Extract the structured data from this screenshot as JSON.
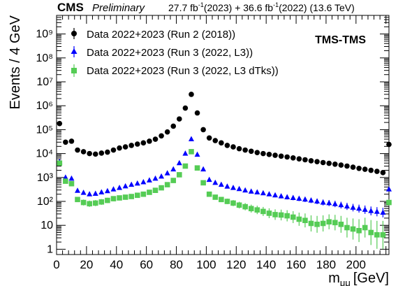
{
  "header": {
    "experiment": "CMS",
    "status": "Preliminary",
    "lumi_text": "27.7 fb",
    "lumi_text_2": "(2023) + 36.6 fb",
    "lumi_text_3": "(2022) (13.6 TeV)",
    "lumi_exp": "-1"
  },
  "chart_data": {
    "type": "scatter",
    "tag": "TMS-TMS",
    "xlabel": "m",
    "xlabel_sub": "μμ",
    "xlabel_unit": "[GeV]",
    "ylabel": "Events / 4 GeV",
    "xlim": [
      0,
      222
    ],
    "ylim": [
      0.6,
      6000000000
    ],
    "yscale": "log",
    "x_ticks": [
      0,
      20,
      40,
      60,
      80,
      100,
      120,
      140,
      160,
      180,
      200
    ],
    "y_tick_labels": [
      "1",
      "10",
      "10²",
      "10³",
      "10⁴",
      "10⁵",
      "10⁶",
      "10⁷",
      "10⁸",
      "10⁹"
    ],
    "legend_position": "top-left",
    "series": [
      {
        "name": "Data 2022+2023 (Run 2 (2018))",
        "color": "#000000",
        "marker": "circle",
        "x": [
          2,
          6,
          10,
          14,
          18,
          22,
          26,
          30,
          34,
          38,
          42,
          46,
          50,
          54,
          58,
          62,
          66,
          70,
          74,
          78,
          82,
          86,
          90,
          94,
          98,
          102,
          106,
          110,
          114,
          118,
          122,
          126,
          130,
          134,
          138,
          142,
          146,
          150,
          154,
          158,
          162,
          166,
          170,
          174,
          178,
          182,
          186,
          190,
          194,
          198,
          202,
          206,
          210,
          214,
          218,
          222
        ],
        "y": [
          180000,
          30000,
          33000,
          14000,
          12000,
          10000,
          9500,
          10500,
          11500,
          14000,
          17000,
          19000,
          22000,
          25000,
          28000,
          33000,
          40000,
          55000,
          80000,
          140000,
          280000,
          800000,
          3000000,
          500000,
          100000,
          45000,
          35000,
          28000,
          22000,
          19000,
          16000,
          14000,
          12500,
          11000,
          10000,
          9200,
          8500,
          7800,
          7200,
          6600,
          6000,
          5500,
          5000,
          4600,
          4200,
          3900,
          3600,
          3300,
          3000,
          2700,
          2400,
          2200,
          2000,
          1800,
          1600,
          24000
        ]
      },
      {
        "name": "Data 2022+2023 (Run 3 (2022, L3))",
        "color": "#0000ff",
        "marker": "triangle",
        "x": [
          2,
          6,
          10,
          14,
          18,
          22,
          26,
          30,
          34,
          38,
          42,
          46,
          50,
          54,
          58,
          62,
          66,
          70,
          74,
          78,
          82,
          86,
          90,
          94,
          98,
          102,
          106,
          110,
          114,
          118,
          122,
          126,
          130,
          134,
          138,
          142,
          146,
          150,
          154,
          158,
          162,
          166,
          170,
          174,
          178,
          182,
          186,
          190,
          194,
          198,
          202,
          206,
          210,
          214,
          218,
          222
        ],
        "y": [
          4500,
          1000,
          900,
          280,
          230,
          200,
          210,
          240,
          270,
          320,
          370,
          430,
          500,
          560,
          640,
          760,
          900,
          1100,
          1500,
          2200,
          4000,
          10000,
          40000,
          9000,
          2200,
          800,
          600,
          500,
          420,
          370,
          330,
          290,
          260,
          240,
          220,
          200,
          180,
          165,
          150,
          140,
          130,
          120,
          110,
          100,
          90,
          85,
          78,
          70,
          62,
          55,
          50,
          45,
          40,
          37,
          34,
          320
        ]
      },
      {
        "name": "Data 2022+2023 (Run 3 (2022, L3 dTks))",
        "color": "#55cc55",
        "marker": "square",
        "x": [
          2,
          6,
          10,
          14,
          18,
          22,
          26,
          30,
          34,
          38,
          42,
          46,
          50,
          54,
          58,
          62,
          66,
          70,
          74,
          78,
          82,
          86,
          90,
          94,
          98,
          102,
          106,
          110,
          114,
          118,
          122,
          126,
          130,
          134,
          138,
          142,
          146,
          150,
          154,
          158,
          162,
          166,
          170,
          174,
          178,
          182,
          186,
          190,
          194,
          198,
          202,
          206,
          210,
          214,
          218,
          222
        ],
        "y": [
          4000,
          700,
          550,
          120,
          90,
          80,
          85,
          95,
          110,
          130,
          140,
          150,
          160,
          180,
          200,
          240,
          290,
          370,
          500,
          750,
          1300,
          3000,
          12000,
          2500,
          600,
          200,
          150,
          120,
          100,
          85,
          70,
          60,
          50,
          44,
          38,
          32,
          28,
          27,
          25,
          22,
          18,
          16,
          12,
          11,
          12,
          14,
          13,
          11,
          8,
          7,
          6,
          8,
          5,
          4,
          4,
          90
        ]
      }
    ]
  }
}
